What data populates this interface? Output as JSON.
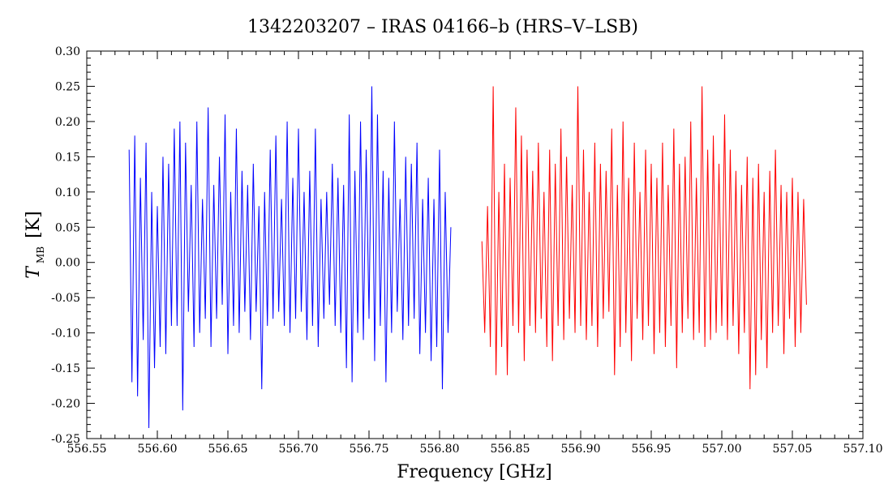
{
  "chart_data": {
    "type": "line",
    "title": "1342203207 – IRAS 04166–b (HRS–V–LSB)",
    "xlabel": "Frequency [GHz]",
    "ylabel_main": "T",
    "ylabel_sub": "MB",
    "ylabel_unit": "[K]",
    "xlim": [
      556.55,
      557.1
    ],
    "ylim": [
      -0.25,
      0.3
    ],
    "x_ticks": [
      "556.55",
      "556.60",
      "556.65",
      "556.70",
      "556.75",
      "556.80",
      "556.85",
      "556.90",
      "556.95",
      "557.00",
      "557.05",
      "557.10"
    ],
    "y_ticks": [
      "0.30",
      "0.25",
      "0.20",
      "0.15",
      "0.10",
      "0.05",
      "0.00",
      "-0.05",
      "-0.10",
      "-0.15",
      "-0.20",
      "-0.25"
    ],
    "grid": false,
    "series": [
      {
        "color": "#0000ff",
        "x": [
          556.58,
          556.582,
          556.584,
          556.586,
          556.588,
          556.59,
          556.592,
          556.594,
          556.596,
          556.598,
          556.6,
          556.602,
          556.604,
          556.606,
          556.608,
          556.61,
          556.612,
          556.614,
          556.616,
          556.618,
          556.62,
          556.622,
          556.624,
          556.626,
          556.628,
          556.63,
          556.632,
          556.634,
          556.636,
          556.638,
          556.64,
          556.642,
          556.644,
          556.646,
          556.648,
          556.65,
          556.652,
          556.654,
          556.656,
          556.658,
          556.66,
          556.662,
          556.664,
          556.666,
          556.668,
          556.67,
          556.672,
          556.674,
          556.676,
          556.678,
          556.68,
          556.682,
          556.684,
          556.686,
          556.688,
          556.69,
          556.692,
          556.694,
          556.696,
          556.698,
          556.7,
          556.702,
          556.704,
          556.706,
          556.708,
          556.71,
          556.712,
          556.714,
          556.716,
          556.718,
          556.72,
          556.722,
          556.724,
          556.726,
          556.728,
          556.73,
          556.732,
          556.734,
          556.736,
          556.738,
          556.74,
          556.742,
          556.744,
          556.746,
          556.748,
          556.75,
          556.752,
          556.754,
          556.756,
          556.758,
          556.76,
          556.762,
          556.764,
          556.766,
          556.768,
          556.77,
          556.772,
          556.774,
          556.776,
          556.778,
          556.78,
          556.782,
          556.784,
          556.786,
          556.788,
          556.79,
          556.792,
          556.794,
          556.796,
          556.798,
          556.8,
          556.802,
          556.804,
          556.806,
          556.808
        ],
        "y": [
          0.16,
          -0.17,
          0.18,
          -0.19,
          0.12,
          -0.11,
          0.17,
          -0.235,
          0.1,
          -0.15,
          0.08,
          -0.12,
          0.15,
          -0.13,
          0.14,
          -0.09,
          0.19,
          -0.09,
          0.2,
          -0.21,
          0.17,
          -0.07,
          0.11,
          -0.12,
          0.2,
          -0.1,
          0.09,
          -0.08,
          0.22,
          -0.12,
          0.11,
          -0.08,
          0.15,
          -0.06,
          0.21,
          -0.13,
          0.1,
          -0.09,
          0.19,
          -0.1,
          0.13,
          -0.07,
          0.11,
          -0.11,
          0.14,
          -0.07,
          0.08,
          -0.18,
          0.1,
          -0.09,
          0.16,
          -0.08,
          0.18,
          -0.07,
          0.09,
          -0.09,
          0.2,
          -0.1,
          0.12,
          -0.08,
          0.19,
          -0.07,
          0.1,
          -0.11,
          0.13,
          -0.09,
          0.19,
          -0.12,
          0.09,
          -0.08,
          0.1,
          -0.06,
          0.14,
          -0.09,
          0.12,
          -0.1,
          0.11,
          -0.15,
          0.21,
          -0.17,
          0.13,
          -0.1,
          0.2,
          -0.11,
          0.16,
          -0.08,
          0.25,
          -0.14,
          0.21,
          -0.09,
          0.13,
          -0.17,
          0.12,
          -0.1,
          0.2,
          -0.07,
          0.09,
          -0.11,
          0.15,
          -0.09,
          0.14,
          -0.08,
          0.17,
          -0.13,
          0.09,
          -0.1,
          0.12,
          -0.14,
          0.09,
          -0.12,
          0.16,
          -0.18,
          0.1,
          -0.1,
          0.05
        ]
      },
      {
        "color": "#ff0000",
        "x": [
          556.83,
          556.832,
          556.834,
          556.836,
          556.838,
          556.84,
          556.842,
          556.844,
          556.846,
          556.848,
          556.85,
          556.852,
          556.854,
          556.856,
          556.858,
          556.86,
          556.862,
          556.864,
          556.866,
          556.868,
          556.87,
          556.872,
          556.874,
          556.876,
          556.878,
          556.88,
          556.882,
          556.884,
          556.886,
          556.888,
          556.89,
          556.892,
          556.894,
          556.896,
          556.898,
          556.9,
          556.902,
          556.904,
          556.906,
          556.908,
          556.91,
          556.912,
          556.914,
          556.916,
          556.918,
          556.92,
          556.922,
          556.924,
          556.926,
          556.928,
          556.93,
          556.932,
          556.934,
          556.936,
          556.938,
          556.94,
          556.942,
          556.944,
          556.946,
          556.948,
          556.95,
          556.952,
          556.954,
          556.956,
          556.958,
          556.96,
          556.962,
          556.964,
          556.966,
          556.968,
          556.97,
          556.972,
          556.974,
          556.976,
          556.978,
          556.98,
          556.982,
          556.984,
          556.986,
          556.988,
          556.99,
          556.992,
          556.994,
          556.996,
          556.998,
          557.0,
          557.002,
          557.004,
          557.006,
          557.008,
          557.01,
          557.012,
          557.014,
          557.016,
          557.018,
          557.02,
          557.022,
          557.024,
          557.026,
          557.028,
          557.03,
          557.032,
          557.034,
          557.036,
          557.038,
          557.04,
          557.042,
          557.044,
          557.046,
          557.048,
          557.05,
          557.052,
          557.054,
          557.056,
          557.058,
          557.06
        ],
        "y": [
          0.03,
          -0.1,
          0.08,
          -0.12,
          0.25,
          -0.16,
          0.1,
          -0.12,
          0.14,
          -0.16,
          0.12,
          -0.09,
          0.22,
          -0.1,
          0.18,
          -0.14,
          0.16,
          -0.09,
          0.13,
          -0.1,
          0.17,
          -0.08,
          0.1,
          -0.12,
          0.16,
          -0.14,
          0.14,
          -0.09,
          0.19,
          -0.11,
          0.15,
          -0.08,
          0.11,
          -0.1,
          0.25,
          -0.09,
          0.16,
          -0.11,
          0.1,
          -0.09,
          0.17,
          -0.12,
          0.14,
          -0.08,
          0.13,
          -0.07,
          0.19,
          -0.16,
          0.11,
          -0.12,
          0.2,
          -0.1,
          0.12,
          -0.14,
          0.17,
          -0.08,
          0.1,
          -0.11,
          0.16,
          -0.09,
          0.14,
          -0.13,
          0.12,
          -0.1,
          0.17,
          -0.12,
          0.11,
          -0.09,
          0.19,
          -0.15,
          0.14,
          -0.1,
          0.15,
          -0.08,
          0.2,
          -0.11,
          0.12,
          -0.1,
          0.25,
          -0.12,
          0.16,
          -0.11,
          0.18,
          -0.1,
          0.14,
          -0.09,
          0.21,
          -0.11,
          0.16,
          -0.09,
          0.13,
          -0.13,
          0.11,
          -0.1,
          0.15,
          -0.18,
          0.12,
          -0.16,
          0.14,
          -0.11,
          0.1,
          -0.15,
          0.13,
          -0.1,
          0.16,
          -0.09,
          0.11,
          -0.13,
          0.1,
          -0.08,
          0.12,
          -0.12,
          0.1,
          -0.1,
          0.09,
          -0.06
        ]
      }
    ]
  }
}
